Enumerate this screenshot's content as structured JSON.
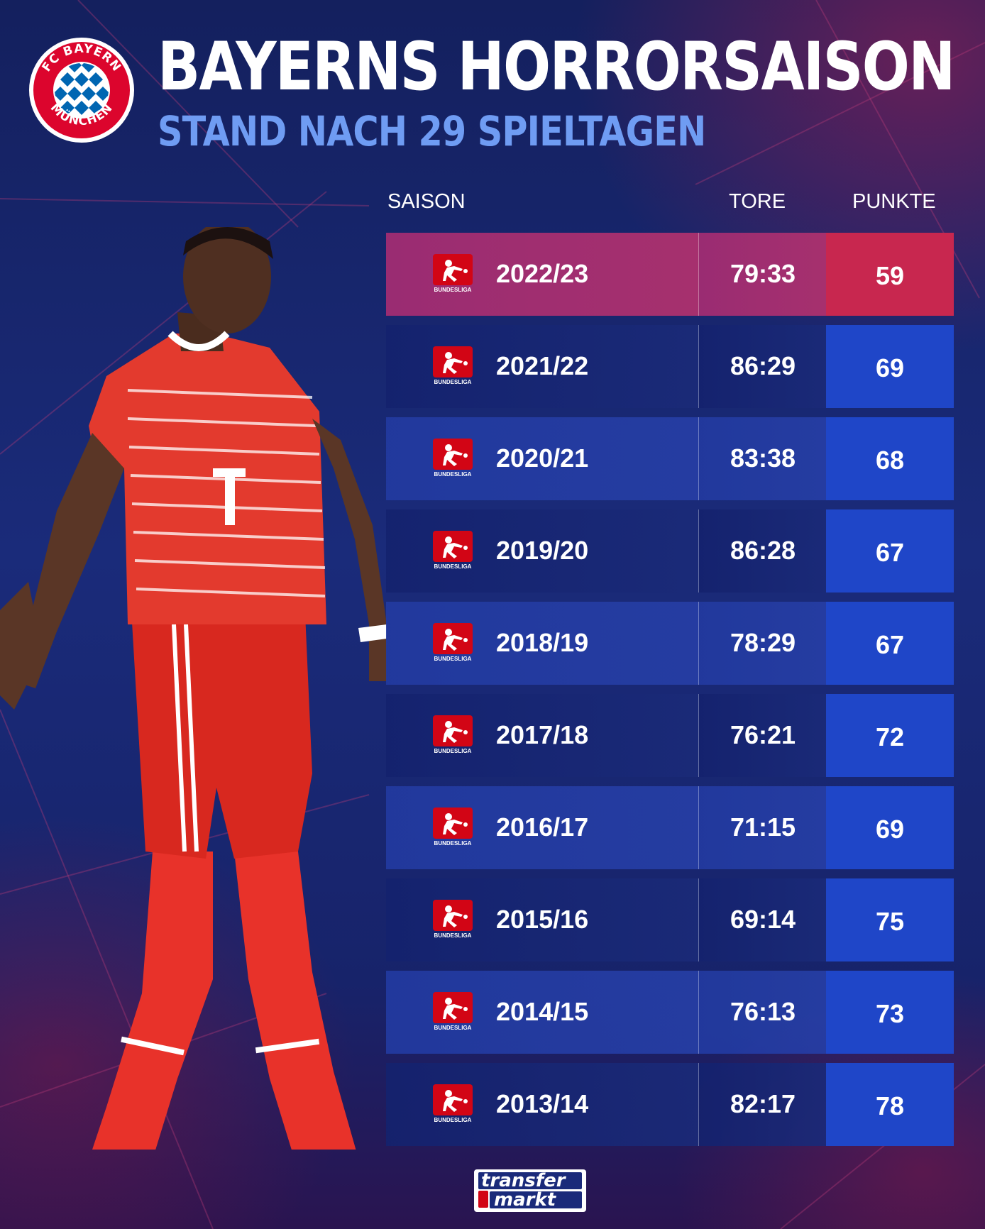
{
  "header": {
    "title": "BAYERNS HORRORSAISON",
    "subtitle": "STAND NACH 29 SPIELTAGEN",
    "logo_text_top": "FC BAYERN",
    "logo_text_bottom": "MÜNCHEN"
  },
  "colors": {
    "points_default": "#1f46c8",
    "points_highlight": "#c8274f",
    "row_highlight": "#a6306e",
    "subtitle": "#6f9cf3"
  },
  "league_badge_caption": "BUNDESLIGA",
  "chart_data": {
    "type": "table",
    "columns": [
      "SAISON",
      "TORE",
      "PUNKTE"
    ],
    "rows": [
      {
        "season": "2022/23",
        "goals": "79:33",
        "points": 59,
        "highlight": true
      },
      {
        "season": "2021/22",
        "goals": "86:29",
        "points": 69,
        "highlight": false
      },
      {
        "season": "2020/21",
        "goals": "83:38",
        "points": 68,
        "highlight": false
      },
      {
        "season": "2019/20",
        "goals": "86:28",
        "points": 67,
        "highlight": false
      },
      {
        "season": "2018/19",
        "goals": "78:29",
        "points": 67,
        "highlight": false
      },
      {
        "season": "2017/18",
        "goals": "76:21",
        "points": 72,
        "highlight": false
      },
      {
        "season": "2016/17",
        "goals": "71:15",
        "points": 69,
        "highlight": false
      },
      {
        "season": "2015/16",
        "goals": "69:14",
        "points": 75,
        "highlight": false
      },
      {
        "season": "2014/15",
        "goals": "76:13",
        "points": 73,
        "highlight": false
      },
      {
        "season": "2013/14",
        "goals": "82:17",
        "points": 78,
        "highlight": false
      }
    ]
  },
  "footer": {
    "brand_line1": "transfer",
    "brand_line2": "markt"
  }
}
